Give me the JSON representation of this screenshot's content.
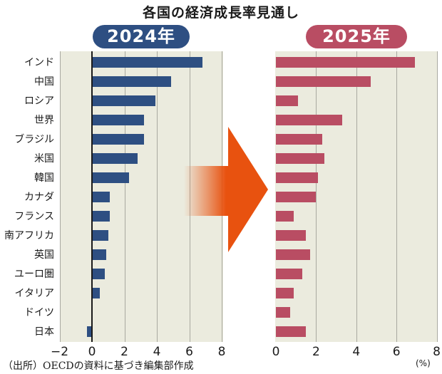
{
  "title": "各国の経済成長率見通し",
  "source_note": "（出所）OECDの資料に基づき編集部作成",
  "colors": {
    "bar_2024": "#2e4f82",
    "bar_2025": "#b94d63",
    "plot_bg": "#ebebde",
    "arrow": "#e8520f"
  },
  "chart_data": [
    {
      "type": "bar",
      "orientation": "horizontal",
      "title": "2024年",
      "categories": [
        "インド",
        "中国",
        "ロシア",
        "世界",
        "ブラジル",
        "米国",
        "韓国",
        "カナダ",
        "フランス",
        "南アフリカ",
        "英国",
        "ユーロ圏",
        "イタリア",
        "ドイツ",
        "日本"
      ],
      "values": [
        6.8,
        4.9,
        3.9,
        3.2,
        3.2,
        2.8,
        2.3,
        1.1,
        1.1,
        1.0,
        0.9,
        0.8,
        0.5,
        0.0,
        -0.3
      ],
      "xlim": [
        -2,
        8
      ],
      "xticks": [
        "−2",
        "0",
        "2",
        "4",
        "6",
        "8"
      ],
      "grid": true
    },
    {
      "type": "bar",
      "orientation": "horizontal",
      "title": "2025年",
      "categories": [
        "インド",
        "中国",
        "ロシア",
        "世界",
        "ブラジル",
        "米国",
        "韓国",
        "カナダ",
        "フランス",
        "南アフリカ",
        "英国",
        "ユーロ圏",
        "イタリア",
        "ドイツ",
        "日本"
      ],
      "values": [
        6.9,
        4.7,
        1.1,
        3.3,
        2.3,
        2.4,
        2.1,
        2.0,
        0.9,
        1.5,
        1.7,
        1.3,
        0.9,
        0.7,
        1.5
      ],
      "xlim": [
        0,
        8
      ],
      "xticks": [
        "0",
        "2",
        "4",
        "6",
        "8"
      ],
      "unit": "(%)",
      "grid": true
    }
  ]
}
